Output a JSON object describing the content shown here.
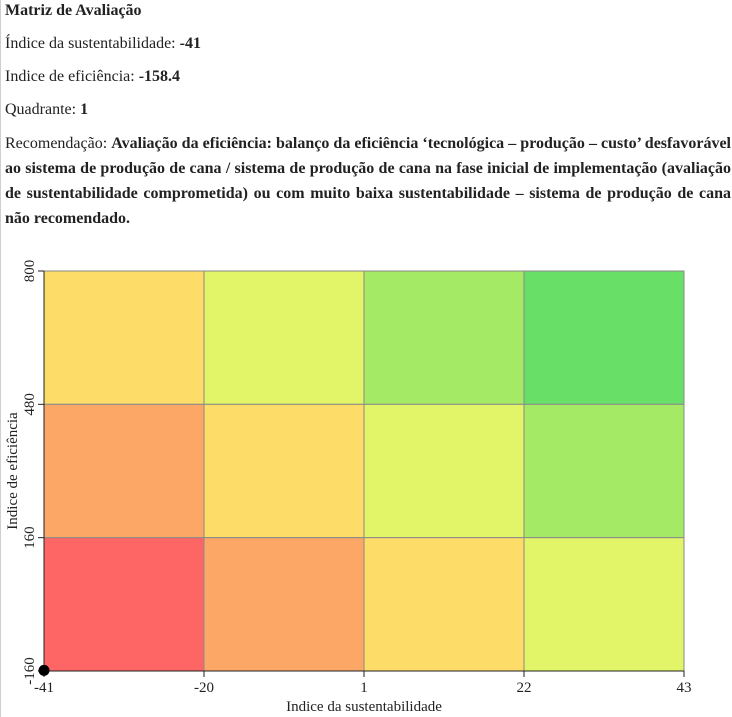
{
  "header": {
    "title": "Matriz de Avaliação",
    "sustainability_label": "Índice da sustentabilidade:",
    "sustainability_value": "-41",
    "efficiency_label": "Indice de eficiência:",
    "efficiency_value": "-158.4",
    "quadrant_label": "Quadrante:",
    "quadrant_value": "1",
    "recommendation_label": "Recomendação:",
    "recommendation_text": "Avaliação da eficiência: balanço da eficiência ‘tecnológica – produção – custo’ desfavorável ao sistema de produção de cana / sistema de produção de cana na fase inicial de implementação (avaliação de sustentabilidade comprometida) ou com muito baixa sustentabilidade – sistema de produção de cana não recomendado."
  },
  "chart_data": {
    "type": "heatmap",
    "xlabel": "Indice da sustentabilidade",
    "ylabel": "Indice de eficiência",
    "x_ticks": [
      "-41",
      "-20",
      "1",
      "22",
      "43"
    ],
    "y_ticks": [
      "-160",
      "160",
      "480",
      "800"
    ],
    "xlim": [
      -41,
      43
    ],
    "ylim": [
      -160,
      800
    ],
    "grid": true,
    "cells_rows_top_to_bottom": [
      [
        "#fddc68",
        "#e2f467",
        "#a5ea64",
        "#68e068"
      ],
      [
        "#fda766",
        "#fddc68",
        "#e2f467",
        "#a5ea64"
      ],
      [
        "#fe6666",
        "#fda766",
        "#fddc68",
        "#e2f467"
      ]
    ],
    "point": {
      "x": -41,
      "y": -158.4,
      "color": "#000000"
    }
  }
}
